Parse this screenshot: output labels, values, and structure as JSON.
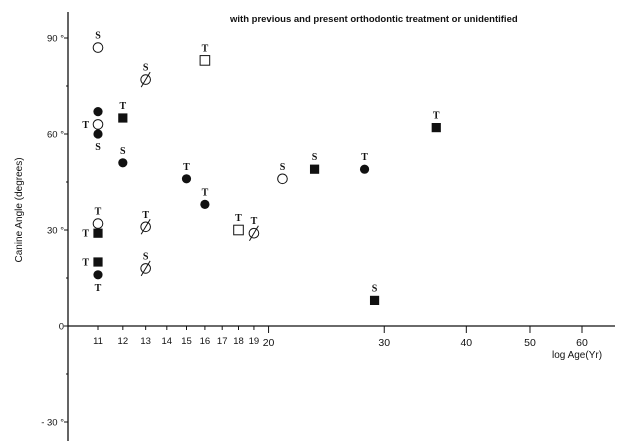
{
  "chart_data": {
    "type": "scatter",
    "title": "with  previous and present  orthodontic treatment or unidentified",
    "ylabel": "Canine Angle (degrees)",
    "xlabel": "log Age(Yr)",
    "x_scale": "log",
    "xlim": [
      10.4,
      66
    ],
    "ylim": [
      -35,
      100
    ],
    "x_ticks": [
      11,
      12,
      13,
      14,
      15,
      16,
      17,
      18,
      19,
      20,
      30,
      40,
      50,
      60
    ],
    "y_ticks": [
      {
        "value": 90,
        "label": "90 °"
      },
      {
        "value": 60,
        "label": "60 °"
      },
      {
        "value": 30,
        "label": "30 °"
      },
      {
        "value": 0,
        "label": "0"
      },
      {
        "value": -30,
        "label": "- 30 °"
      }
    ],
    "grid": false,
    "marker_styles": [
      "open-circle",
      "filled-circle",
      "filled-square",
      "open-square",
      "slashed-circle"
    ],
    "points": [
      {
        "x": 11,
        "y": 87,
        "marker": "open-circle",
        "label": "S",
        "label_pos": "above"
      },
      {
        "x": 11,
        "y": 67,
        "marker": "filled-circle",
        "label": "",
        "label_pos": "above"
      },
      {
        "x": 11,
        "y": 63,
        "marker": "open-circle",
        "label": "T",
        "label_pos": "left"
      },
      {
        "x": 11,
        "y": 60,
        "marker": "filled-circle",
        "label": "S",
        "label_pos": "below"
      },
      {
        "x": 11,
        "y": 32,
        "marker": "open-circle",
        "label": "T",
        "label_pos": "above"
      },
      {
        "x": 11,
        "y": 29,
        "marker": "filled-square",
        "label": "T",
        "label_pos": "left"
      },
      {
        "x": 11,
        "y": 20,
        "marker": "filled-square",
        "label": "T",
        "label_pos": "left"
      },
      {
        "x": 11,
        "y": 16,
        "marker": "filled-circle",
        "label": "T",
        "label_pos": "below"
      },
      {
        "x": 12,
        "y": 65,
        "marker": "filled-square",
        "label": "T",
        "label_pos": "above"
      },
      {
        "x": 12,
        "y": 51,
        "marker": "filled-circle",
        "label": "S",
        "label_pos": "above"
      },
      {
        "x": 13,
        "y": 77,
        "marker": "slashed-circle",
        "label": "S",
        "label_pos": "above"
      },
      {
        "x": 13,
        "y": 31,
        "marker": "slashed-circle",
        "label": "T",
        "label_pos": "above"
      },
      {
        "x": 13,
        "y": 18,
        "marker": "slashed-circle",
        "label": "S",
        "label_pos": "above"
      },
      {
        "x": 15,
        "y": 46,
        "marker": "filled-circle",
        "label": "T",
        "label_pos": "above"
      },
      {
        "x": 16,
        "y": 83,
        "marker": "open-square",
        "label": "T",
        "label_pos": "above"
      },
      {
        "x": 16,
        "y": 38,
        "marker": "filled-circle",
        "label": "T",
        "label_pos": "above"
      },
      {
        "x": 18,
        "y": 30,
        "marker": "open-square",
        "label": "T",
        "label_pos": "above"
      },
      {
        "x": 19,
        "y": 29,
        "marker": "slashed-circle",
        "label": "T",
        "label_pos": "above"
      },
      {
        "x": 21,
        "y": 46,
        "marker": "open-circle",
        "label": "S",
        "label_pos": "above"
      },
      {
        "x": 23.5,
        "y": 49,
        "marker": "filled-square",
        "label": "S",
        "label_pos": "above"
      },
      {
        "x": 28,
        "y": 49,
        "marker": "filled-circle",
        "label": "T",
        "label_pos": "above"
      },
      {
        "x": 29,
        "y": 8,
        "marker": "filled-square",
        "label": "S",
        "label_pos": "above"
      },
      {
        "x": 36,
        "y": 62,
        "marker": "filled-square",
        "label": "T",
        "label_pos": "above"
      }
    ]
  }
}
